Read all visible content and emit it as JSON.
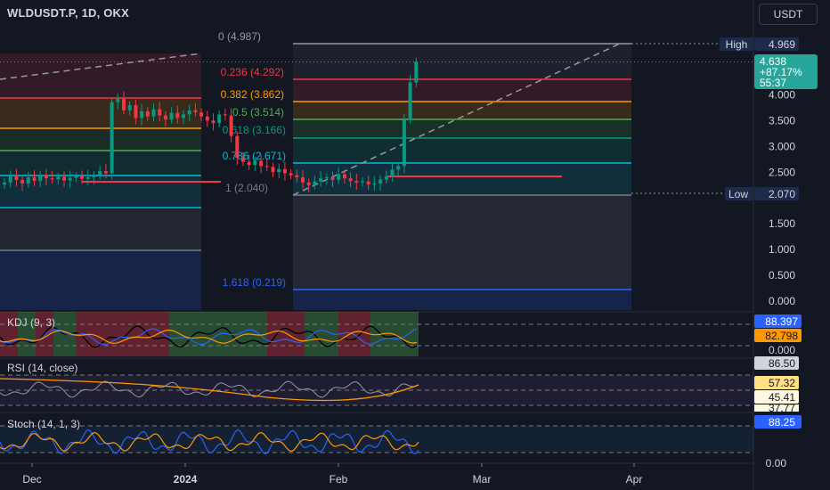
{
  "header": {
    "symbol_title": "WLDUSDT.P, 1D, OKX",
    "currency_label": "USDT"
  },
  "price_axis": {
    "ticks": [
      {
        "value": 4.0,
        "label": "4.000"
      },
      {
        "value": 3.5,
        "label": "3.500"
      },
      {
        "value": 3.0,
        "label": "3.000"
      },
      {
        "value": 2.5,
        "label": "2.500"
      },
      {
        "value": 1.5,
        "label": "1.500"
      },
      {
        "value": 1.0,
        "label": "1.000"
      },
      {
        "value": 0.5,
        "label": "0.500"
      },
      {
        "value": 0.0,
        "label": "0.000"
      }
    ],
    "high_label": "High",
    "high_value": "4.969",
    "low_label": "Low",
    "low_value": "2.070",
    "last_price": "4.638",
    "last_change": "+87.17%",
    "countdown": "55:37",
    "accent_up": "#26a69a"
  },
  "time_axis": {
    "labels": [
      {
        "text": "Dec",
        "bold": false
      },
      {
        "text": "2024",
        "bold": true
      },
      {
        "text": "Feb",
        "bold": false
      },
      {
        "text": "Mar",
        "bold": false
      },
      {
        "text": "Apr",
        "bold": false
      }
    ]
  },
  "fib_right": {
    "levels": [
      {
        "ratio": "0",
        "price": "4.987",
        "label": "0 (4.987)",
        "color": "#9598a1",
        "fill": "rgba(120,123,134,0.10)"
      },
      {
        "ratio": "0.236",
        "price": "4.292",
        "label": "0.236 (4.292)",
        "color": "#f23645",
        "fill": "rgba(242,54,69,0.14)"
      },
      {
        "ratio": "0.382",
        "price": "3.862",
        "label": "0.382 (3.862)",
        "color": "#ff9800",
        "fill": "rgba(255,152,0,0.16)"
      },
      {
        "ratio": "0.5",
        "price": "3.514",
        "label": "0.5 (3.514)",
        "color": "#4caf50",
        "fill": "rgba(76,175,80,0.16)"
      },
      {
        "ratio": "0.618",
        "price": "3.166",
        "label": "0.618 (3.166)",
        "color": "#089981",
        "fill": "rgba(8,153,129,0.18)"
      },
      {
        "ratio": "0.786",
        "price": "2.671",
        "label": "0.786 (2.671)",
        "color": "#00bcd4",
        "fill": "rgba(0,188,212,0.14)"
      },
      {
        "ratio": "1",
        "price": "2.040",
        "label": "1 (2.040)",
        "color": "#787b86",
        "fill": "rgba(120,123,134,0.18)"
      },
      {
        "ratio": "1.618",
        "price": "0.219",
        "label": "1.618 (0.219)",
        "color": "#2962ff",
        "fill": "rgba(41,98,255,0.18)"
      }
    ]
  },
  "indicators": {
    "kdj": {
      "label": "KDJ (9, 3)",
      "values": [
        "88.397",
        "82.798",
        "0.000"
      ],
      "colors": [
        "#2962ff",
        "#ff9800"
      ]
    },
    "rsi": {
      "label": "RSI (14, close)",
      "values": [
        "86.50",
        "57.32",
        "45.41",
        "37.77"
      ]
    },
    "stoch": {
      "label": "Stoch (14, 1, 3)",
      "values": [
        "88.25",
        "0.00"
      ]
    }
  },
  "chart_data": {
    "type": "candlestick",
    "title": "WLDUSDT.P, 1D, OKX",
    "xlabel": "",
    "ylabel": "",
    "ylim": [
      0,
      5.0
    ],
    "date_range": [
      "2023-11-17",
      "2024-02-19"
    ],
    "closes": [
      2.3,
      2.42,
      2.35,
      2.28,
      2.4,
      2.33,
      2.45,
      2.38,
      2.36,
      2.41,
      2.34,
      2.39,
      2.42,
      2.37,
      2.4,
      2.44,
      2.52,
      2.48,
      3.86,
      3.92,
      3.7,
      3.8,
      3.55,
      3.68,
      3.58,
      3.72,
      3.6,
      3.52,
      3.65,
      3.55,
      3.62,
      3.7,
      3.66,
      3.58,
      3.5,
      3.45,
      3.62,
      3.6,
      3.2,
      2.78,
      2.7,
      2.64,
      2.72,
      2.62,
      2.6,
      2.5,
      2.56,
      2.48,
      2.44,
      2.4,
      2.3,
      2.25,
      2.32,
      2.38,
      2.4,
      2.35,
      2.46,
      2.38,
      2.33,
      2.3,
      2.32,
      2.26,
      2.28,
      2.36,
      2.42,
      2.55,
      2.62,
      3.52,
      4.24,
      4.64
    ],
    "session_high": 4.969,
    "session_low": 2.07,
    "last": 4.638
  }
}
